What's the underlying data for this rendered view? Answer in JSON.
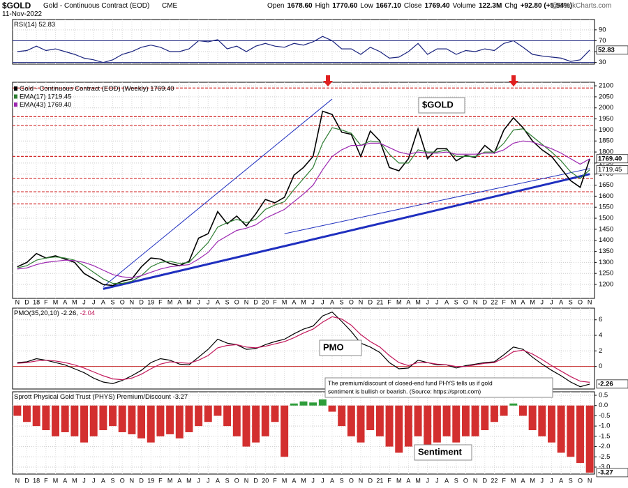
{
  "header": {
    "symbol": "$GOLD",
    "name": "Gold - Continuous Contract (EOD)",
    "exchange": "CME",
    "date": "11-Nov-2022",
    "quote": [
      {
        "label": "Open",
        "value": "1678.60"
      },
      {
        "label": "High",
        "value": "1770.60"
      },
      {
        "label": "Low",
        "value": "1667.10"
      },
      {
        "label": "Close",
        "value": "1769.40"
      },
      {
        "label": "Volume",
        "value": "122.3M"
      },
      {
        "label": "Chg",
        "value": "+92.80 (+5.54%)"
      }
    ],
    "source": "@StockCharts.com"
  },
  "chart_data": [
    {
      "type": "line",
      "title": "RSI(14)",
      "ylim": [
        27,
        109
      ],
      "yticks": [
        30,
        50,
        70,
        90
      ],
      "ref_lines": [
        70,
        30
      ],
      "ref_color": "#1a237e",
      "categories": [
        "N",
        "D",
        "18",
        "F",
        "M",
        "A",
        "M",
        "J",
        "J",
        "A",
        "S",
        "O",
        "N",
        "D",
        "19",
        "F",
        "M",
        "A",
        "M",
        "J",
        "J",
        "A",
        "S",
        "O",
        "N",
        "D",
        "20",
        "F",
        "M",
        "A",
        "M",
        "J",
        "J",
        "A",
        "S",
        "O",
        "N",
        "D",
        "21",
        "F",
        "M",
        "A",
        "M",
        "J",
        "J",
        "A",
        "S",
        "O",
        "N",
        "D",
        "22",
        "F",
        "M",
        "A",
        "M",
        "J",
        "J",
        "A",
        "S",
        "O",
        "N"
      ],
      "series": [
        {
          "name": "RSI(14)",
          "color": "#1a237e",
          "values": [
            50,
            52,
            60,
            52,
            55,
            50,
            45,
            38,
            35,
            30,
            35,
            45,
            50,
            58,
            62,
            58,
            50,
            50,
            55,
            70,
            68,
            72,
            55,
            60,
            50,
            60,
            65,
            60,
            58,
            65,
            62,
            68,
            78,
            70,
            55,
            55,
            45,
            58,
            50,
            38,
            40,
            50,
            65,
            45,
            55,
            55,
            45,
            52,
            50,
            55,
            52,
            65,
            70,
            58,
            45,
            42,
            40,
            38,
            32,
            35,
            52.83
          ]
        }
      ]
    },
    {
      "type": "line",
      "title": "Gold - Continuous Contract (EOD) (Weekly)",
      "ylim": [
        1137,
        2116
      ],
      "yticks": [
        1200,
        1250,
        1300,
        1350,
        1400,
        1450,
        1500,
        1550,
        1600,
        1650,
        1700,
        1750,
        1800,
        1850,
        1900,
        1950,
        2000,
        2050,
        2100
      ],
      "series": [
        {
          "name": "Gold - Continuous Contract (EOD) (Weekly)",
          "color": "#000000",
          "last_label": "1769.40",
          "values": [
            1280,
            1300,
            1340,
            1320,
            1330,
            1315,
            1300,
            1250,
            1225,
            1200,
            1195,
            1215,
            1225,
            1280,
            1320,
            1315,
            1295,
            1285,
            1305,
            1410,
            1430,
            1530,
            1475,
            1510,
            1465,
            1520,
            1585,
            1570,
            1595,
            1695,
            1730,
            1780,
            1985,
            1970,
            1890,
            1880,
            1780,
            1895,
            1850,
            1730,
            1715,
            1770,
            1905,
            1770,
            1815,
            1815,
            1760,
            1785,
            1775,
            1830,
            1795,
            1900,
            1955,
            1910,
            1850,
            1810,
            1780,
            1725,
            1670,
            1640,
            1769.4
          ]
        },
        {
          "name": "EMA(17)",
          "color": "#2e7d32",
          "values": [
            1275,
            1285,
            1310,
            1320,
            1325,
            1320,
            1310,
            1285,
            1255,
            1225,
            1205,
            1205,
            1215,
            1240,
            1280,
            1300,
            1305,
            1295,
            1300,
            1345,
            1390,
            1460,
            1480,
            1495,
            1480,
            1495,
            1540,
            1560,
            1575,
            1630,
            1680,
            1730,
            1840,
            1910,
            1900,
            1885,
            1830,
            1850,
            1845,
            1790,
            1750,
            1750,
            1810,
            1800,
            1800,
            1810,
            1780,
            1780,
            1780,
            1800,
            1800,
            1840,
            1900,
            1905,
            1870,
            1835,
            1800,
            1760,
            1710,
            1680,
            1719.45
          ]
        },
        {
          "name": "EMA(43)",
          "color": "#9c27b0",
          "last_label": "1769.40",
          "values": [
            1270,
            1275,
            1290,
            1300,
            1305,
            1310,
            1308,
            1300,
            1285,
            1265,
            1245,
            1235,
            1230,
            1240,
            1255,
            1270,
            1280,
            1285,
            1290,
            1315,
            1345,
            1395,
            1420,
            1445,
            1455,
            1470,
            1500,
            1520,
            1540,
            1575,
            1610,
            1650,
            1720,
            1780,
            1810,
            1830,
            1830,
            1840,
            1840,
            1820,
            1800,
            1790,
            1800,
            1795,
            1795,
            1800,
            1790,
            1790,
            1790,
            1795,
            1795,
            1810,
            1840,
            1850,
            1845,
            1830,
            1815,
            1795,
            1770,
            1745,
            1769.4
          ]
        }
      ],
      "levels": [
        2090,
        1960,
        1920,
        1780,
        1680,
        1620,
        1565
      ],
      "level_color": "#d32f2f",
      "trendlines": [
        {
          "x": [
            9,
            60
          ],
          "y": [
            1180,
            1700
          ],
          "width": 3
        },
        {
          "x": [
            28,
            60
          ],
          "y": [
            1430,
            1725
          ],
          "width": 1
        },
        {
          "x": [
            9,
            33
          ],
          "y": [
            1190,
            2040
          ],
          "width": 1
        }
      ],
      "trend_color": "#1f2fbf",
      "annotation": "$GOLD"
    },
    {
      "type": "line",
      "title": "PMO(35,20,10)",
      "ylim": [
        -2.9,
        7.5
      ],
      "yticks": [
        0,
        2,
        4,
        6
      ],
      "ref_lines": [
        0
      ],
      "ref_color": "#c62828",
      "annotation": "PMO",
      "series": [
        {
          "name": "PMO",
          "color": "#000000",
          "values": [
            0.5,
            0.6,
            1.0,
            0.8,
            0.5,
            0.2,
            -0.3,
            -0.8,
            -1.5,
            -2.0,
            -2.2,
            -1.8,
            -1.2,
            -0.5,
            0.5,
            1.0,
            0.8,
            0.3,
            0.2,
            1.2,
            2.2,
            3.5,
            3.0,
            2.8,
            2.2,
            2.3,
            2.8,
            3.2,
            3.5,
            4.2,
            4.8,
            5.2,
            6.5,
            7.0,
            5.8,
            4.5,
            3.0,
            2.5,
            1.8,
            0.5,
            -0.3,
            -0.2,
            0.8,
            0.5,
            0.2,
            0.2,
            -0.2,
            0.1,
            0.3,
            0.5,
            0.6,
            1.5,
            2.5,
            2.2,
            1.2,
            0.3,
            -0.5,
            -1.2,
            -2.0,
            -2.6,
            -2.26
          ]
        },
        {
          "name": "Signal",
          "color": "#c2185b",
          "values": [
            0.4,
            0.5,
            0.7,
            0.8,
            0.7,
            0.5,
            0.2,
            -0.2,
            -0.7,
            -1.2,
            -1.6,
            -1.7,
            -1.5,
            -1.0,
            -0.3,
            0.3,
            0.6,
            0.5,
            0.4,
            0.8,
            1.4,
            2.4,
            2.7,
            2.8,
            2.5,
            2.4,
            2.6,
            2.9,
            3.2,
            3.7,
            4.3,
            4.8,
            5.7,
            6.4,
            6.1,
            5.3,
            4.1,
            3.2,
            2.5,
            1.4,
            0.5,
            0.1,
            0.5,
            0.5,
            0.3,
            0.2,
            0.0,
            0.0,
            0.2,
            0.4,
            0.5,
            1.1,
            1.9,
            2.1,
            1.6,
            0.9,
            0.1,
            -0.6,
            -1.3,
            -1.9,
            -2.04
          ]
        }
      ]
    },
    {
      "type": "bar",
      "title": "Sprott Physical Gold Trust (PHYS) Premium/Discount",
      "ylim": [
        -3.34,
        0.67
      ],
      "yticks": [
        0.5,
        {
          "value": 0,
          "label": "0.0"
        },
        -0.5,
        {
          "value": -1,
          "label": "-1.0"
        },
        -1.5,
        {
          "value": -2,
          "label": "-2.0"
        },
        -2.5,
        {
          "value": -3,
          "label": "-3.0"
        }
      ],
      "annotation": "Sentiment",
      "note": [
        "The premium/discount of closed-end fund PHYS tells us if gold",
        "sentiment is bullish or bearish. (Source: https://sprott.com)"
      ],
      "series": [
        {
          "name": "Sprott Physical Gold Trust (PHYS) Premium/Discount",
          "color": "#d32f2f",
          "positive_color": "#2e9d3a",
          "values": [
            -0.5,
            -0.8,
            -1.0,
            -1.2,
            -1.5,
            -1.3,
            -1.5,
            -1.8,
            -1.5,
            -1.2,
            -1.0,
            -1.3,
            -1.4,
            -1.6,
            -1.8,
            -1.5,
            -1.4,
            -1.6,
            -1.3,
            -1.0,
            -0.8,
            -0.5,
            -1.0,
            -1.5,
            -2.0,
            -1.8,
            -1.5,
            -0.8,
            -2.5,
            0.1,
            0.2,
            0.15,
            0.3,
            -0.3,
            -1.0,
            -1.5,
            -1.8,
            -1.2,
            -1.5,
            -2.0,
            -2.3,
            -2.0,
            -1.5,
            -2.2,
            -1.8,
            -1.5,
            -1.8,
            -1.5,
            -1.5,
            -1.2,
            -0.8,
            -0.5,
            0.1,
            -0.5,
            -1.2,
            -1.5,
            -1.8,
            -2.3,
            -2.5,
            -2.8,
            -3.27
          ]
        }
      ]
    }
  ]
}
